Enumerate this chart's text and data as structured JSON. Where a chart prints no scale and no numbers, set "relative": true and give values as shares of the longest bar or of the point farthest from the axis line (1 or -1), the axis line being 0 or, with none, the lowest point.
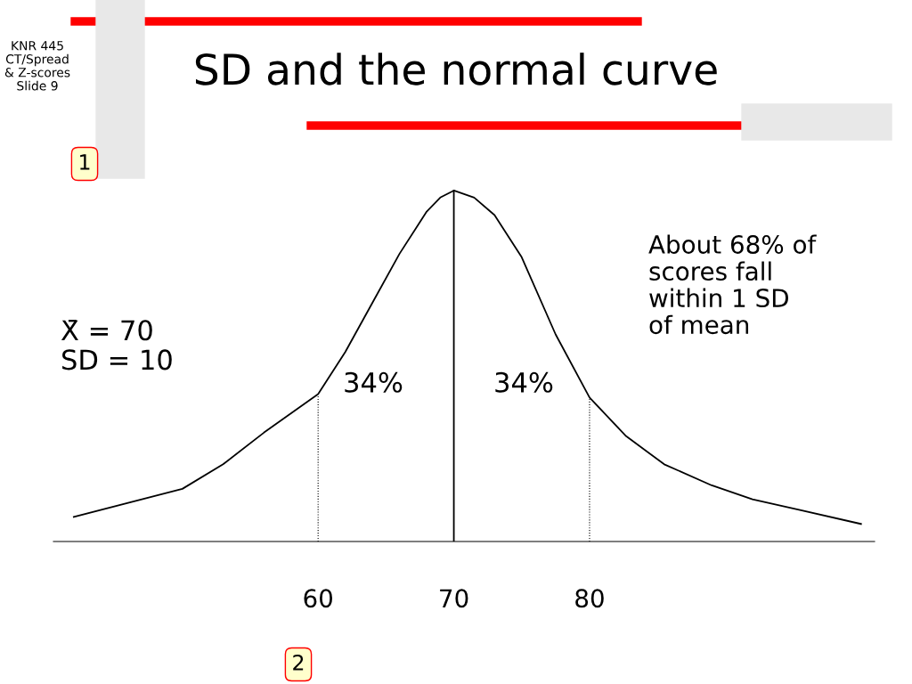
{
  "chart_data": {
    "type": "line",
    "title": "SD and the normal curve",
    "relative": true,
    "x": [
      42,
      46,
      50,
      53,
      56,
      60,
      62,
      64,
      66,
      68,
      69,
      70,
      71.5,
      73,
      75,
      77.5,
      80,
      82.7,
      85.5,
      89,
      92,
      95.5,
      100
    ],
    "series": [
      {
        "color": "#000000",
        "values": [
          0.07,
          0.11,
          0.15,
          0.22,
          0.31,
          0.42,
          0.54,
          0.68,
          0.82,
          0.94,
          0.98,
          1,
          0.98,
          0.93,
          0.81,
          0.59,
          0.41,
          0.3,
          0.22,
          0.16,
          0.12,
          0.09,
          0.05
        ]
      }
    ],
    "xlim": [
      40.5,
      101
    ],
    "xticks": [
      60,
      70,
      80
    ],
    "ref_lines": [
      {
        "axis": "x",
        "value": 60,
        "line_style": "dotted"
      },
      {
        "axis": "x",
        "value": 70,
        "line_style": "solid"
      },
      {
        "axis": "x",
        "value": 80,
        "line_style": "dotted"
      }
    ],
    "annotations": [
      "34%",
      "34%",
      "KNR 445\nCT/Spread\n& Z-scores\nSlide 9",
      "X̄ = 70\nSD = 10",
      "About 68% of\nscores fall\nwithin 1 SD\nof mean",
      "1",
      "2"
    ],
    "grid": false,
    "legend": false,
    "marker": "none",
    "line_style": "solid"
  }
}
